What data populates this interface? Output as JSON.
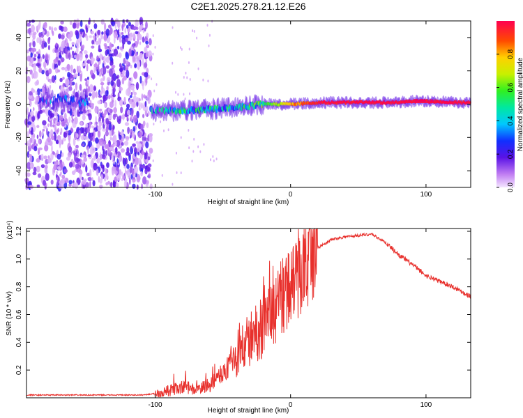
{
  "title": "C2E1.2025.278.21.12.E26",
  "colorbar": {
    "label": "Normalized spectral amplitude",
    "ticks": [
      0.0,
      0.2,
      0.4,
      0.6,
      0.8
    ],
    "tick_labels": [
      "0.0",
      "0.2",
      "0.4",
      "0.6",
      "0.8"
    ],
    "range": [
      0,
      1
    ]
  },
  "chart_data": [
    {
      "type": "heatmap",
      "name": "spectrogram",
      "xlabel": "Height of straight line (km)",
      "ylabel": "Frequency (Hz)",
      "xlim": [
        -195,
        133
      ],
      "ylim": [
        -50,
        50
      ],
      "xticks": [
        -100,
        0,
        100
      ],
      "xtick_labels": [
        "-100",
        "0",
        "100"
      ],
      "yticks": [
        -40,
        -20,
        0,
        20,
        40
      ],
      "ytick_labels": [
        "-40",
        "-20",
        "0",
        "20",
        "40"
      ],
      "features": {
        "noise_region_km": [
          -195,
          -103
        ],
        "signal_track": [
          {
            "x": -100,
            "y": -4,
            "amp": 0.3
          },
          {
            "x": -80,
            "y": -4,
            "amp": 0.38
          },
          {
            "x": -60,
            "y": -3,
            "amp": 0.38
          },
          {
            "x": -40,
            "y": -2,
            "amp": 0.4
          },
          {
            "x": -20,
            "y": 0,
            "amp": 0.5
          },
          {
            "x": 0,
            "y": 0,
            "amp": 0.8
          },
          {
            "x": 20,
            "y": 1,
            "amp": 0.95
          },
          {
            "x": 50,
            "y": 1,
            "amp": 1.0
          },
          {
            "x": 80,
            "y": 1,
            "amp": 1.0
          },
          {
            "x": 95,
            "y": 2,
            "amp": 1.0
          },
          {
            "x": 120,
            "y": 1,
            "amp": 1.0
          },
          {
            "x": 133,
            "y": 1,
            "amp": 0.95
          }
        ]
      }
    },
    {
      "type": "line",
      "name": "snr",
      "xlabel": "Height of straight line (km)",
      "ylabel": "SNR (10 * v/v)",
      "y_multiplier": "(x10⁴)",
      "xlim": [
        -195,
        133
      ],
      "ylim": [
        0,
        1.22
      ],
      "xticks": [
        -100,
        0,
        100
      ],
      "xtick_labels": [
        "-100",
        "0",
        "100"
      ],
      "yticks": [
        0.2,
        0.4,
        0.6,
        0.8,
        1.0,
        1.2
      ],
      "ytick_labels": [
        "0.2",
        "0.4",
        "0.6",
        "0.8",
        "1.0",
        "1.2"
      ],
      "color": "#e8302c",
      "series": [
        {
          "name": "SNR",
          "x": [
            -195,
            -170,
            -140,
            -110,
            -100,
            -90,
            -80,
            -70,
            -60,
            -50,
            -40,
            -30,
            -20,
            -10,
            0,
            10,
            20,
            30,
            40,
            50,
            60,
            70,
            80,
            90,
            100,
            110,
            120,
            133
          ],
          "y": [
            0.02,
            0.02,
            0.02,
            0.02,
            0.03,
            0.05,
            0.08,
            0.06,
            0.08,
            0.18,
            0.3,
            0.42,
            0.52,
            0.65,
            0.8,
            0.93,
            1.08,
            1.14,
            1.16,
            1.17,
            1.18,
            1.12,
            1.03,
            0.96,
            0.88,
            0.84,
            0.8,
            0.73
          ]
        }
      ]
    }
  ]
}
